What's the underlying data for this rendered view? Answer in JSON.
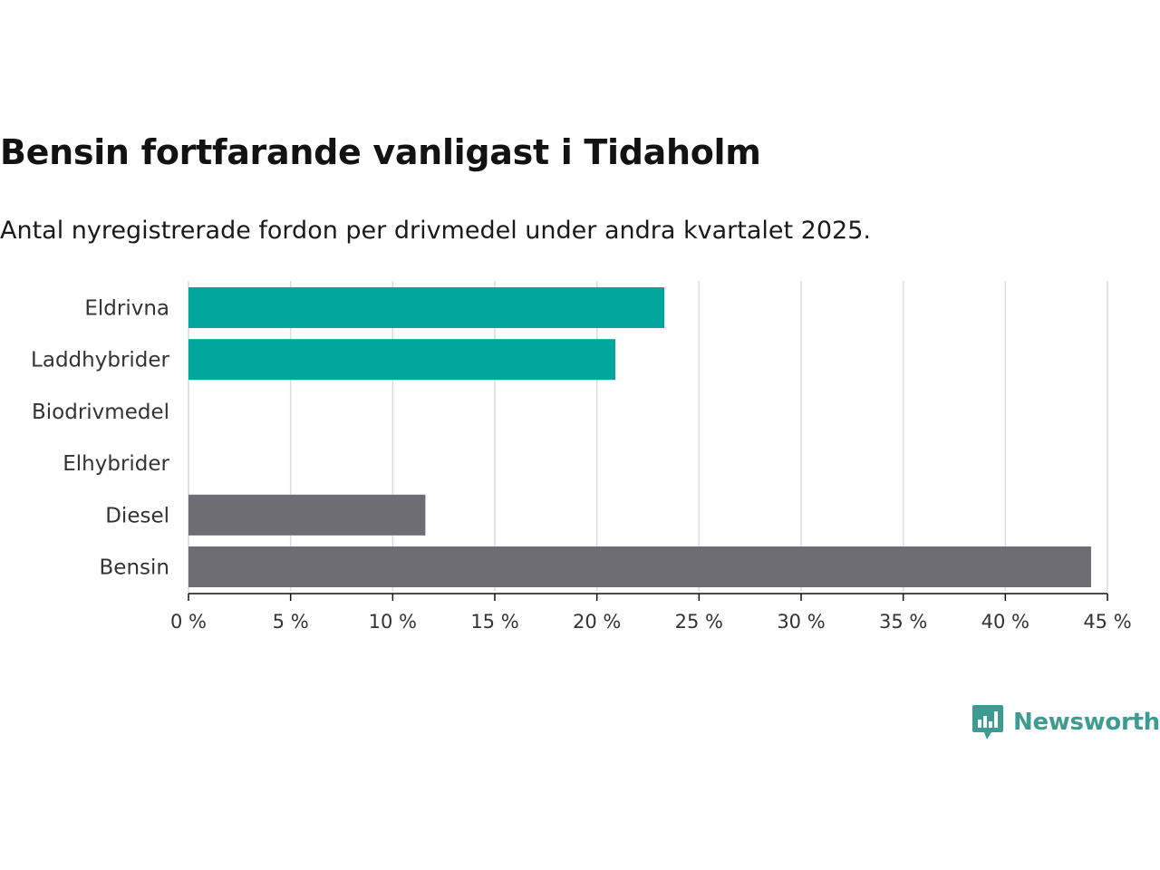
{
  "header": {
    "title": "Bensin fortfarande vanligast i Tidaholm",
    "subtitle": "Antal nyregistrerade fordon per drivmedel under andra kvartalet 2025."
  },
  "brand": {
    "name": "Newsworthy",
    "icon": "newsworthy-logo-icon",
    "color": "#3d9b92"
  },
  "chart_data": {
    "type": "bar",
    "orientation": "horizontal",
    "categories": [
      "Eldrivna",
      "Laddhybrider",
      "Biodrivmedel",
      "Elhybrider",
      "Diesel",
      "Bensin"
    ],
    "values": [
      23.3,
      20.9,
      0,
      0,
      11.6,
      44.2
    ],
    "colors": [
      "#00a59b",
      "#00a59b",
      "#00a59b",
      "#6e6d75",
      "#6e6d75",
      "#6e6d75"
    ],
    "xlim": [
      0,
      45
    ],
    "ticks": [
      0,
      5,
      10,
      15,
      20,
      25,
      30,
      35,
      40,
      45
    ],
    "tick_labels": [
      "0 %",
      "5 %",
      "10 %",
      "15 %",
      "20 %",
      "25 %",
      "30 %",
      "35 %",
      "40 %",
      "45 %"
    ],
    "grid": true,
    "xlabel": "",
    "ylabel": ""
  }
}
